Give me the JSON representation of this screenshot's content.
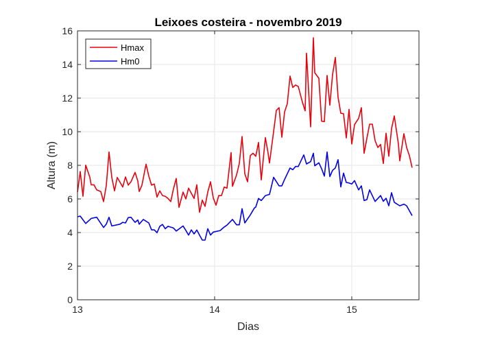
{
  "chart_data": {
    "type": "line",
    "title": "Leixoes costeira -  novembro 2019",
    "xlabel": "Dias",
    "ylabel": "Altura (m)",
    "xlim": [
      13,
      15.49
    ],
    "ylim": [
      0,
      16
    ],
    "xticks": [
      13,
      14,
      15
    ],
    "yticks": [
      0,
      2,
      4,
      6,
      8,
      10,
      12,
      14,
      16
    ],
    "grid": true,
    "legend_position": "top-left",
    "series": [
      {
        "name": "Hmax",
        "color": "#e8000b",
        "x": [
          13.0,
          13.02,
          13.04,
          13.06,
          13.09,
          13.1,
          13.12,
          13.14,
          13.17,
          13.19,
          13.21,
          13.23,
          13.25,
          13.27,
          13.29,
          13.33,
          13.35,
          13.37,
          13.39,
          13.42,
          13.44,
          13.45,
          13.47,
          13.5,
          13.52,
          13.54,
          13.56,
          13.58,
          13.6,
          13.62,
          13.64,
          13.66,
          13.68,
          13.7,
          13.72,
          13.74,
          13.77,
          13.79,
          13.81,
          13.83,
          13.85,
          13.87,
          13.89,
          13.91,
          13.93,
          13.95,
          13.97,
          13.99,
          14.01,
          14.03,
          14.05,
          14.07,
          14.09,
          14.12,
          14.13,
          14.16,
          14.18,
          14.2,
          14.22,
          14.24,
          14.26,
          14.28,
          14.3,
          14.32,
          14.34,
          14.37,
          14.39,
          14.4,
          14.43,
          14.45,
          14.47,
          14.49,
          14.51,
          14.53,
          14.55,
          14.57,
          14.59,
          14.61,
          14.64,
          14.66,
          14.67,
          14.7,
          14.72,
          14.73,
          14.76,
          14.78,
          14.8,
          14.82,
          14.84,
          14.86,
          14.88,
          14.9,
          14.92,
          14.94,
          14.96,
          14.98,
          15.0,
          15.02,
          15.05,
          15.07,
          15.09,
          15.11,
          15.13,
          15.15,
          15.17,
          15.19,
          15.21,
          15.23,
          15.25,
          15.27,
          15.29,
          15.31,
          15.34,
          15.35,
          15.38,
          15.4,
          15.42,
          15.44
        ],
        "y": [
          6.4,
          7.63,
          6.16,
          8.01,
          7.29,
          6.84,
          6.84,
          6.54,
          6.44,
          5.84,
          6.79,
          8.79,
          7.29,
          6.48,
          7.28,
          6.71,
          7.31,
          6.82,
          7.02,
          7.58,
          7.06,
          6.44,
          6.82,
          8.07,
          7.36,
          6.82,
          6.89,
          6.11,
          6.48,
          6.2,
          6.16,
          6.03,
          5.84,
          6.61,
          7.22,
          5.5,
          6.41,
          6.0,
          6.64,
          6.34,
          6.03,
          6.84,
          5.21,
          5.93,
          5.56,
          6.41,
          7.02,
          6.07,
          5.63,
          6.2,
          6.2,
          6.71,
          6.64,
          8.76,
          6.75,
          7.43,
          8.11,
          9.71,
          7.5,
          7.02,
          8.58,
          8.72,
          8.54,
          9.36,
          7.13,
          9.65,
          8.72,
          8.14,
          10.01,
          11.27,
          11.43,
          9.67,
          11.17,
          11.67,
          13.31,
          12.63,
          12.78,
          12.69,
          11.76,
          11.24,
          14.67,
          10.29,
          15.59,
          13.51,
          13.18,
          10.63,
          10.6,
          13.35,
          11.58,
          13.41,
          14.42,
          12.05,
          11.1,
          11.07,
          9.63,
          11.33,
          9.27,
          10.42,
          10.79,
          11.43,
          8.72,
          9.6,
          10.45,
          10.45,
          9.47,
          9.06,
          9.24,
          8.11,
          9.91,
          8.54,
          10.18,
          10.94,
          9.27,
          8.27,
          9.88,
          9.06,
          8.58,
          7.86
        ]
      },
      {
        "name": "Hm0",
        "color": "#0000e6",
        "x": [
          13.0,
          13.02,
          13.06,
          13.1,
          13.14,
          13.19,
          13.21,
          13.23,
          13.25,
          13.31,
          13.33,
          13.35,
          13.37,
          13.39,
          13.42,
          13.44,
          13.45,
          13.48,
          13.52,
          13.54,
          13.56,
          13.58,
          13.6,
          13.62,
          13.64,
          13.66,
          13.7,
          13.72,
          13.77,
          13.79,
          13.81,
          13.83,
          13.85,
          13.87,
          13.89,
          13.91,
          13.93,
          13.95,
          13.97,
          13.99,
          14.04,
          14.07,
          14.09,
          14.13,
          14.16,
          14.18,
          14.2,
          14.22,
          14.26,
          14.29,
          14.3,
          14.32,
          14.34,
          14.37,
          14.4,
          14.43,
          14.47,
          14.49,
          14.51,
          14.55,
          14.57,
          14.59,
          14.61,
          14.65,
          14.67,
          14.7,
          14.72,
          14.73,
          14.76,
          14.78,
          14.8,
          14.82,
          14.84,
          14.86,
          14.88,
          14.9,
          14.92,
          14.94,
          14.96,
          14.98,
          15.0,
          15.02,
          15.05,
          15.07,
          15.09,
          15.11,
          15.13,
          15.17,
          15.21,
          15.23,
          15.25,
          15.27,
          15.29,
          15.31,
          15.35,
          15.38,
          15.4,
          15.44
        ],
        "y": [
          4.94,
          4.98,
          4.54,
          4.84,
          4.91,
          4.3,
          4.5,
          4.91,
          4.39,
          4.5,
          4.61,
          4.57,
          4.89,
          4.91,
          4.61,
          4.75,
          4.5,
          4.78,
          4.57,
          4.16,
          4.16,
          3.99,
          4.37,
          4.48,
          4.23,
          4.37,
          4.27,
          4.09,
          4.39,
          4.13,
          3.85,
          4.16,
          3.92,
          4.15,
          3.85,
          3.55,
          3.55,
          4.23,
          3.85,
          4.03,
          4.12,
          4.33,
          4.44,
          4.78,
          4.46,
          4.46,
          5.42,
          4.57,
          5.05,
          5.46,
          5.52,
          6.03,
          5.9,
          6.2,
          6.27,
          7.29,
          6.78,
          6.78,
          7.16,
          7.84,
          7.74,
          7.93,
          7.93,
          8.62,
          8.08,
          8.22,
          8.72,
          7.97,
          8.15,
          7.8,
          7.36,
          8.79,
          7.33,
          7.7,
          7.84,
          8.34,
          6.72,
          7.54,
          6.98,
          6.95,
          6.89,
          7.09,
          6.54,
          6.78,
          5.9,
          5.96,
          6.54,
          5.85,
          6.2,
          5.86,
          6.04,
          5.59,
          6.37,
          5.8,
          5.59,
          5.69,
          5.59,
          5.01
        ]
      }
    ]
  }
}
